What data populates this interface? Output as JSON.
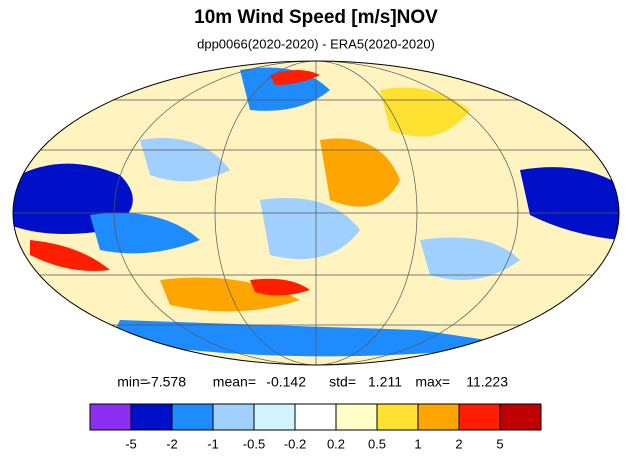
{
  "title": "10m Wind Speed [m/s]NOV",
  "subtitle": "dpp0066(2020-2020) - ERA5(2020-2020)",
  "stats": [
    {
      "label": "min=",
      "value": -7.578
    },
    {
      "label": "mean=",
      "value": -0.142
    },
    {
      "label": "std=",
      "value": 1.211
    },
    {
      "label": "max=",
      "value": 11.223
    }
  ],
  "colorbar": {
    "levels": [
      -5,
      -2,
      -1,
      -0.5,
      -0.2,
      0.2,
      0.5,
      1,
      2,
      5
    ],
    "colors": [
      "#8c2ff0",
      "#0010c8",
      "#1e8cff",
      "#a0d0ff",
      "#d2f4ff",
      "#ffffff",
      "#ffffc8",
      "#ffe132",
      "#ffa500",
      "#ff1e00",
      "#c00000"
    ]
  }
}
